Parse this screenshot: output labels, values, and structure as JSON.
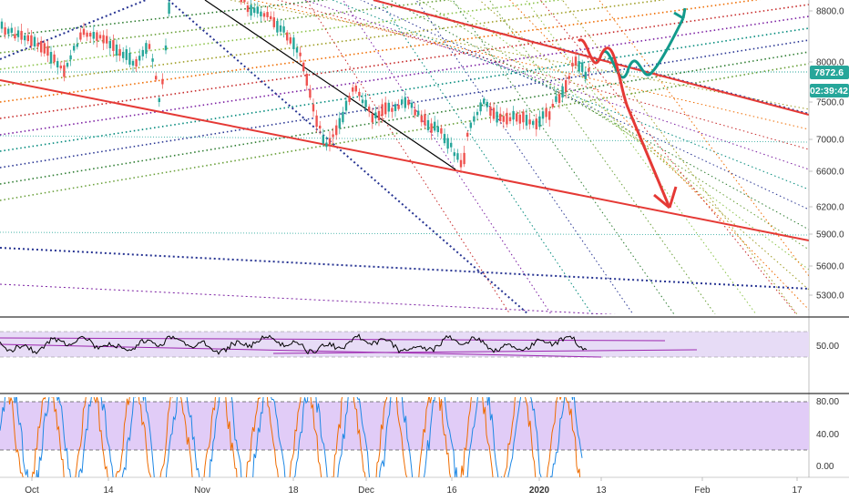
{
  "colors": {
    "price_badge": "#26a69a",
    "countdown_badge": "#26a69a",
    "rsi_line": "#000000",
    "rsi_band_fill": "#e7dcf6",
    "stoch_band_fill": "#e1ccf7",
    "stoch_k": "#1e88e5",
    "stoch_d": "#ef6c00",
    "channel_line": "#e53935",
    "forecast_up": "#129a8c",
    "forecast_down": "#e53935",
    "trend_line": "#000000"
  },
  "price_labels": {
    "current_price": "7872.6",
    "countdown": "02:39:42"
  },
  "chart_data": [
    {
      "type": "candlestick",
      "title": "",
      "y_axis": {
        "ticks": [
          "8800.0",
          "8000.0",
          "7500.0",
          "7000.0",
          "6600.0",
          "6200.0",
          "5900.0",
          "5600.0",
          "5300.0"
        ],
        "scale": "log"
      },
      "x_axis": {
        "ticks": [
          "Oct",
          "14",
          "Nov",
          "18",
          "Dec",
          "16",
          "2020",
          "13",
          "Feb",
          "17"
        ]
      },
      "series": [
        {
          "values": [
            [
              "2019-10-01",
              8550
            ],
            [
              "2019-10-04",
              8200
            ],
            [
              "2019-10-07",
              7900
            ],
            [
              "2019-10-10",
              8450
            ],
            [
              "2019-10-13",
              8350
            ],
            [
              "2019-10-16",
              8200
            ],
            [
              "2019-10-19",
              7950
            ],
            [
              "2019-10-22",
              8250
            ],
            [
              "2019-10-24",
              7450
            ],
            [
              "2019-10-26",
              9200
            ],
            [
              "2019-10-28",
              9300
            ],
            [
              "2019-10-31",
              9150
            ],
            [
              "2019-11-04",
              9300
            ],
            [
              "2019-11-07",
              9200
            ],
            [
              "2019-11-10",
              8800
            ],
            [
              "2019-11-13",
              8750
            ],
            [
              "2019-11-16",
              8500
            ],
            [
              "2019-11-19",
              8150
            ],
            [
              "2019-11-22",
              7300
            ],
            [
              "2019-11-24",
              6900
            ],
            [
              "2019-11-26",
              7150
            ],
            [
              "2019-11-29",
              7700
            ],
            [
              "2019-12-02",
              7300
            ],
            [
              "2019-12-05",
              7400
            ],
            [
              "2019-12-08",
              7500
            ],
            [
              "2019-12-11",
              7250
            ],
            [
              "2019-12-14",
              7100
            ],
            [
              "2019-12-16",
              6900
            ],
            [
              "2019-12-18",
              6650
            ],
            [
              "2019-12-19",
              7150
            ],
            [
              "2019-12-22",
              7500
            ],
            [
              "2019-12-25",
              7250
            ],
            [
              "2019-12-28",
              7300
            ],
            [
              "2019-12-31",
              7200
            ],
            [
              "2020-01-03",
              7350
            ],
            [
              "2020-01-06",
              7700
            ],
            [
              "2020-01-08",
              8050
            ],
            [
              "2020-01-10",
              7850
            ],
            [
              "2020-01-11",
              7872.6
            ]
          ]
        }
      ]
    },
    {
      "type": "line",
      "title": "",
      "y_axis": {
        "ticks": [
          "50.00"
        ]
      },
      "series": [
        {
          "values": [
            [
              0,
              45
            ],
            [
              10,
              52
            ],
            [
              20,
              50
            ],
            [
              30,
              58
            ],
            [
              40,
              54
            ],
            [
              50,
              48
            ],
            [
              60,
              56
            ],
            [
              70,
              51
            ],
            [
              80,
              49
            ],
            [
              90,
              50
            ],
            [
              100,
              47
            ],
            [
              110,
              53
            ],
            [
              120,
              49
            ],
            [
              130,
              55
            ],
            [
              140,
              52
            ],
            [
              150,
              58
            ],
            [
              160,
              54
            ]
          ]
        }
      ]
    },
    {
      "type": "line",
      "title": "",
      "y_axis": {
        "ticks": [
          "80.00",
          "40.00",
          "0.00"
        ],
        "range": [
          0,
          100
        ]
      },
      "series": [
        {
          "values": [
            [
              0,
              90
            ],
            [
              5,
              10
            ],
            [
              10,
              85
            ],
            [
              15,
              20
            ],
            [
              20,
              95
            ],
            [
              25,
              5
            ],
            [
              30,
              80
            ],
            [
              35,
              15
            ],
            [
              40,
              90
            ],
            [
              45,
              8
            ],
            [
              50,
              85
            ],
            [
              55,
              12
            ],
            [
              60,
              92
            ],
            [
              65,
              6
            ],
            [
              70,
              88
            ],
            [
              75,
              20
            ],
            [
              80,
              95
            ],
            [
              85,
              5
            ],
            [
              90,
              80
            ],
            [
              95,
              10
            ],
            [
              100,
              90
            ]
          ]
        },
        {
          "values": [
            [
              0,
              85
            ],
            [
              5,
              15
            ],
            [
              10,
              80
            ],
            [
              15,
              25
            ],
            [
              20,
              90
            ],
            [
              25,
              10
            ],
            [
              30,
              75
            ],
            [
              35,
              20
            ],
            [
              40,
              85
            ],
            [
              45,
              12
            ],
            [
              50,
              80
            ],
            [
              55,
              18
            ],
            [
              60,
              88
            ],
            [
              65,
              10
            ],
            [
              70,
              82
            ],
            [
              75,
              25
            ],
            [
              80,
              90
            ],
            [
              85,
              8
            ],
            [
              90,
              75
            ],
            [
              95,
              15
            ],
            [
              100,
              85
            ]
          ]
        }
      ]
    }
  ]
}
